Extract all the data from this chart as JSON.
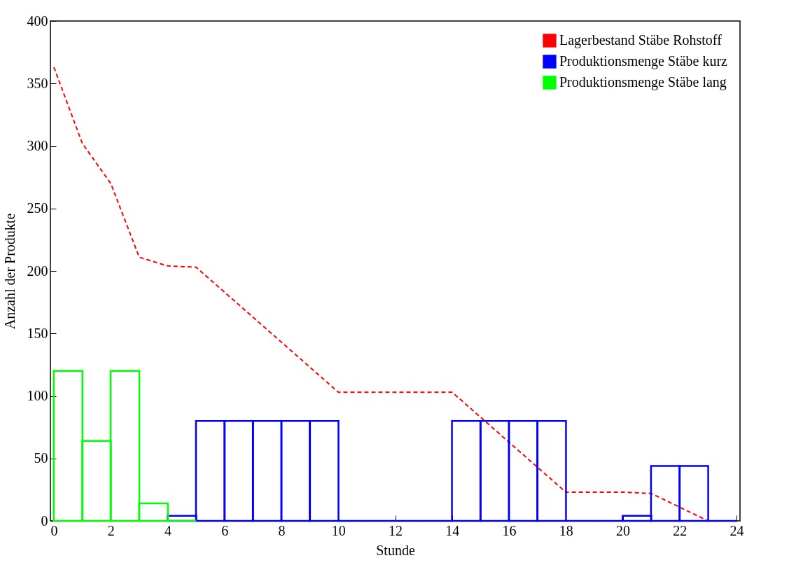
{
  "chart_data": {
    "type": "bar",
    "xlabel": "Stunde",
    "ylabel": "Anzahl der Produkte",
    "xlim": [
      0,
      24
    ],
    "xticks": [
      0,
      2,
      4,
      6,
      8,
      10,
      12,
      14,
      16,
      18,
      20,
      22,
      24
    ],
    "ylim": [
      0,
      400
    ],
    "yticks": [
      0,
      50,
      100,
      150,
      200,
      250,
      300,
      350,
      400
    ],
    "grid": false,
    "legend": "top right",
    "series": [
      {
        "name": "Lagerbestand Stäbe Rohstoff",
        "type": "line",
        "line_style": "dashed",
        "marker": "none",
        "color": "#ff0000",
        "x": [
          0,
          1,
          2,
          3,
          4,
          5,
          6,
          7,
          8,
          9,
          10,
          11,
          12,
          13,
          14,
          15,
          16,
          17,
          18,
          19,
          20,
          21,
          22,
          23
        ],
        "values": [
          363,
          302,
          270,
          211,
          204,
          203,
          183,
          163,
          143,
          123,
          103,
          103,
          103,
          103,
          103,
          83,
          63,
          43,
          23,
          23,
          23,
          22,
          11,
          0
        ]
      },
      {
        "name": "Produktionsmenge Stäbe kurz",
        "color": "#0000ff",
        "x": [
          4.5,
          5.5,
          6.5,
          7.5,
          8.5,
          9.5,
          10.5,
          11.5,
          12.5,
          13.5,
          14.5,
          15.5,
          16.5,
          17.5,
          18.5,
          19.5,
          20.5,
          21.5,
          22.5,
          23.5
        ],
        "values": [
          4,
          80,
          80,
          80,
          80,
          80,
          0,
          0,
          0,
          0,
          80,
          80,
          80,
          80,
          0,
          0,
          4,
          44,
          44,
          0
        ]
      },
      {
        "name": "Produktionsmenge Stäbe lang",
        "color": "#00ff00",
        "x": [
          0.5,
          1.5,
          2.5,
          3.5,
          4.5
        ],
        "values": [
          120,
          64,
          120,
          14,
          0
        ]
      }
    ]
  }
}
